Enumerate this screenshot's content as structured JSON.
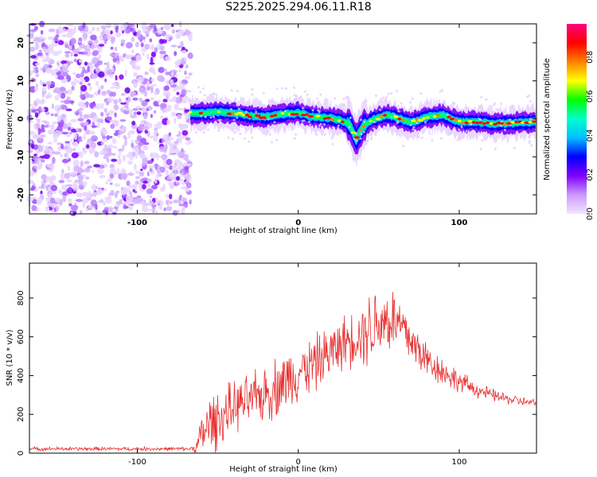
{
  "title": "S225.2025.294.06.11.R18",
  "chart_data": [
    {
      "type": "heatmap",
      "xlabel": "Height of straight line (km)",
      "ylabel": "Frequency (Hz)",
      "xlim": [
        -167,
        148
      ],
      "ylim": [
        -25,
        25
      ],
      "xticks": [
        -100,
        0,
        100
      ],
      "yticks": [
        -20,
        -10,
        0,
        10,
        20
      ],
      "colorbar": {
        "label": "Normalized spectral amplitude",
        "range": [
          0.0,
          0.97
        ],
        "ticks": [
          0.0,
          0.2,
          0.4,
          0.6,
          0.8
        ],
        "colors": [
          "#f2e6ff",
          "#cc99ff",
          "#8000ff",
          "#0000ff",
          "#00bfff",
          "#00ffcc",
          "#00ff00",
          "#ffff00",
          "#ff8000",
          "#ff0000",
          "#ff0080"
        ]
      },
      "noise_region_x": [
        -167,
        -67
      ],
      "signal_trace": {
        "x": [
          -67,
          -60,
          -50,
          -40,
          -30,
          -20,
          -10,
          0,
          10,
          20,
          27,
          32,
          36,
          40,
          45,
          50,
          55,
          60,
          70,
          80,
          90,
          95,
          100,
          110,
          120,
          130,
          148
        ],
        "freq": [
          1.5,
          1.5,
          1.8,
          1.5,
          0.8,
          0.5,
          1.2,
          1.5,
          0.5,
          0.2,
          -0.5,
          -1.5,
          -5.5,
          -2.0,
          -0.5,
          0.3,
          1.0,
          0.5,
          -1.0,
          0.5,
          1.0,
          0.0,
          -0.8,
          -0.8,
          -1.2,
          -1.2,
          -0.8
        ]
      }
    },
    {
      "type": "line",
      "xlabel": "Height of straight line (km)",
      "ylabel": "SNR (10 * v/v)",
      "xlim": [
        -167,
        148
      ],
      "ylim": [
        0,
        980
      ],
      "xticks": [
        -100,
        0,
        100
      ],
      "yticks": [
        0,
        200,
        400,
        600,
        800
      ],
      "color": "#e83030",
      "series": [
        {
          "x": [
            -167,
            -140,
            -110,
            -80,
            -67,
            -63,
            -60,
            -55,
            -50,
            -45,
            -40,
            -30,
            -20,
            -10,
            0,
            10,
            20,
            30,
            35,
            40,
            45,
            50,
            55,
            60,
            65,
            70,
            80,
            90,
            100,
            110,
            120,
            130,
            140,
            148
          ],
          "base": [
            22,
            22,
            22,
            22,
            22,
            35,
            90,
            150,
            180,
            200,
            240,
            270,
            310,
            360,
            420,
            460,
            520,
            580,
            600,
            620,
            650,
            680,
            690,
            680,
            640,
            580,
            480,
            420,
            370,
            330,
            300,
            280,
            265,
            255
          ],
          "amp": [
            12,
            12,
            12,
            12,
            12,
            40,
            160,
            200,
            180,
            170,
            160,
            160,
            180,
            200,
            180,
            180,
            170,
            170,
            180,
            200,
            260,
            230,
            230,
            220,
            200,
            160,
            120,
            90,
            70,
            50,
            40,
            35,
            30,
            25
          ]
        }
      ]
    }
  ]
}
